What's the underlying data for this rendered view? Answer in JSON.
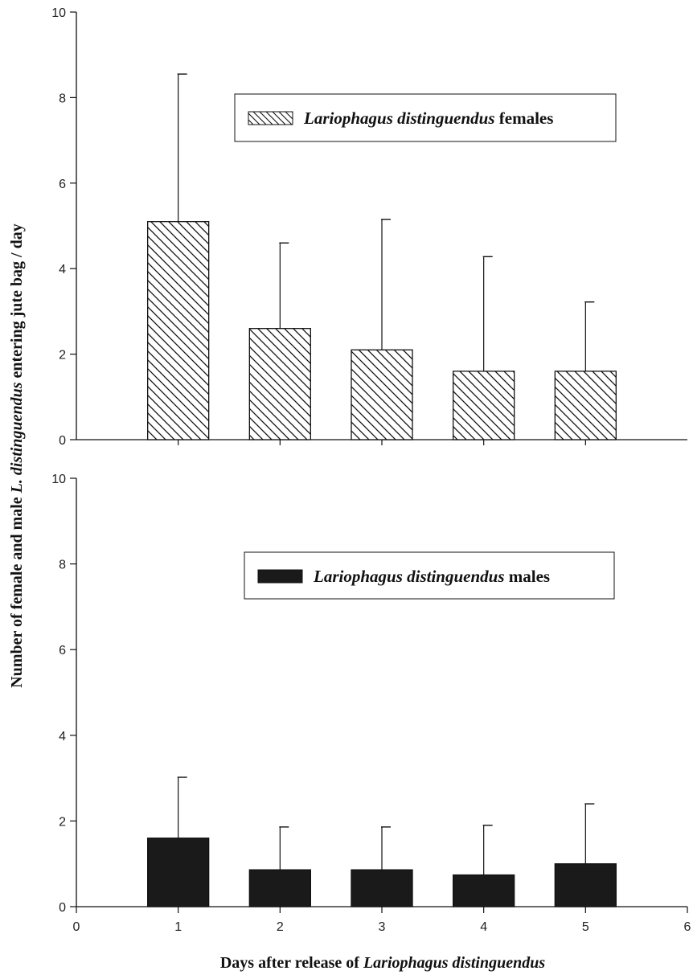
{
  "chart_data": [
    {
      "type": "bar",
      "panel": "top",
      "categories": [
        1,
        2,
        3,
        4,
        5
      ],
      "xlim": [
        0,
        6
      ],
      "ylim": [
        0,
        10
      ],
      "yticks": [
        0,
        2,
        4,
        6,
        8,
        10
      ],
      "series": [
        {
          "name_parts": [
            {
              "text": "Lariophagus distinguendus",
              "italic": true
            },
            {
              "text": " females",
              "italic": false
            }
          ],
          "values": [
            5.1,
            2.6,
            2.1,
            1.6,
            1.6
          ],
          "error_upper": [
            8.55,
            4.6,
            5.15,
            4.28,
            3.22
          ],
          "fill": "hatch"
        }
      ],
      "legend_placement": "top-right",
      "grid": false
    },
    {
      "type": "bar",
      "panel": "bottom",
      "categories": [
        1,
        2,
        3,
        4,
        5
      ],
      "xlim": [
        0,
        6
      ],
      "ylim": [
        0,
        10
      ],
      "xticks": [
        0,
        1,
        2,
        3,
        4,
        5,
        6
      ],
      "yticks": [
        0,
        2,
        4,
        6,
        8,
        10
      ],
      "series": [
        {
          "name_parts": [
            {
              "text": "Lariophagus  distinguendus",
              "italic": true
            },
            {
              "text": " males",
              "italic": false
            }
          ],
          "values": [
            1.6,
            0.86,
            0.86,
            0.74,
            1.0
          ],
          "error_upper": [
            3.02,
            1.86,
            1.86,
            1.9,
            2.4
          ],
          "fill": "#1a1a1a"
        }
      ],
      "legend_placement": "top-right",
      "grid": false
    }
  ],
  "ylabel_parts": [
    {
      "text": "Number of female and male ",
      "italic": false
    },
    {
      "text": "L. distinguendus",
      "italic": true
    },
    {
      "text": " entering  jute bag  / day",
      "italic": false
    }
  ],
  "xlabel_parts": [
    {
      "text": "Days after release of ",
      "italic": false
    },
    {
      "text": "Lariophagus distinguendus",
      "italic": true
    }
  ]
}
